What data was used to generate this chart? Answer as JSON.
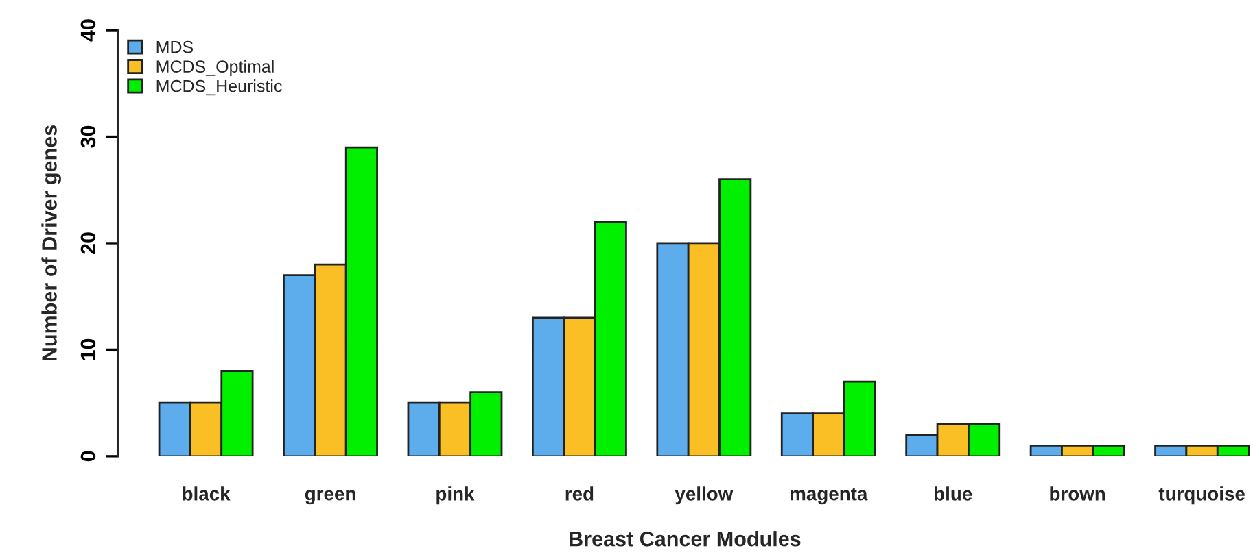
{
  "chart_data": {
    "type": "bar",
    "xlabel": "Breast Cancer Modules",
    "ylabel": "Number of Driver genes",
    "categories": [
      "black",
      "green",
      "pink",
      "red",
      "yellow",
      "magenta",
      "blue",
      "brown",
      "turquoise"
    ],
    "series": [
      {
        "name": "MDS",
        "color": "#5dacec",
        "values": [
          5,
          17,
          5,
          13,
          20,
          4,
          2,
          1,
          1
        ]
      },
      {
        "name": "MCDS_Optimal",
        "color": "#fbbf26",
        "values": [
          5,
          18,
          5,
          13,
          20,
          4,
          3,
          1,
          1
        ]
      },
      {
        "name": "MCDS_Heuristic",
        "color": "#00f000",
        "values": [
          8,
          29,
          6,
          22,
          26,
          7,
          3,
          1,
          1
        ]
      }
    ],
    "ylim": [
      0,
      40
    ],
    "yticks": [
      0,
      10,
      20,
      30,
      40
    ],
    "grid": false,
    "legend": "top left"
  }
}
